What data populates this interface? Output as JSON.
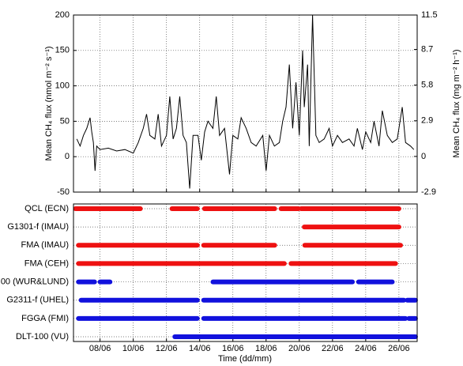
{
  "chart_data": [
    {
      "type": "line",
      "ylabel": "Mean CH₄ flux (nmol m⁻² s⁻¹)",
      "y2label": "Mean CH₄ flux (mg m⁻² h⁻¹)",
      "x": [
        6.6,
        6.8,
        7.0,
        7.2,
        7.4,
        7.5,
        7.6,
        7.7,
        7.8,
        8.0,
        8.5,
        9.0,
        9.5,
        10.0,
        10.3,
        10.6,
        10.8,
        11.0,
        11.3,
        11.5,
        11.7,
        12.0,
        12.2,
        12.4,
        12.6,
        12.8,
        13.0,
        13.2,
        13.4,
        13.6,
        13.9,
        14.1,
        14.3,
        14.5,
        14.8,
        15.0,
        15.2,
        15.5,
        15.8,
        16.0,
        16.3,
        16.5,
        16.8,
        17.1,
        17.4,
        17.8,
        18.0,
        18.2,
        18.5,
        18.8,
        19.0,
        19.2,
        19.4,
        19.6,
        19.8,
        20.0,
        20.2,
        20.3,
        20.5,
        20.6,
        20.8,
        21.0,
        21.2,
        21.5,
        21.8,
        22.0,
        22.3,
        22.6,
        23.0,
        23.3,
        23.5,
        23.8,
        24.0,
        24.3,
        24.5,
        24.8,
        25.0,
        25.3,
        25.6,
        25.9,
        26.2,
        26.4,
        26.7,
        26.9
      ],
      "series": [
        {
          "color": "#000000",
          "values": [
            25,
            15,
            30,
            40,
            55,
            35,
            20,
            -20,
            15,
            10,
            12,
            8,
            10,
            5,
            20,
            40,
            60,
            30,
            25,
            60,
            15,
            30,
            85,
            25,
            40,
            85,
            30,
            20,
            -45,
            30,
            30,
            -5,
            35,
            50,
            40,
            85,
            30,
            40,
            -25,
            30,
            25,
            55,
            40,
            20,
            15,
            30,
            -20,
            30,
            15,
            20,
            50,
            70,
            130,
            40,
            105,
            30,
            150,
            70,
            130,
            15,
            200,
            30,
            20,
            25,
            40,
            15,
            30,
            20,
            25,
            15,
            40,
            10,
            35,
            20,
            50,
            15,
            65,
            30,
            20,
            25,
            70,
            20,
            15,
            10
          ]
        }
      ],
      "xlim": [
        6.4,
        27.1
      ],
      "xticks": [
        8,
        10,
        12,
        14,
        16,
        18,
        20,
        22,
        24,
        26
      ],
      "ylim": [
        -50,
        200
      ],
      "yticks": [
        -50,
        0,
        50,
        100,
        150,
        200
      ],
      "y2lim": [
        -2.9,
        11.5
      ],
      "y2ticks": [
        -2.9,
        0,
        2.9,
        5.8,
        8.7,
        11.5
      ],
      "grid": true
    },
    {
      "type": "timeline",
      "xlabel": "Time (dd/mm)",
      "xlim": [
        6.4,
        27.1
      ],
      "xticks": [
        {
          "value": 8,
          "label": "08/06"
        },
        {
          "value": 10,
          "label": "10/06"
        },
        {
          "value": 12,
          "label": "12/06"
        },
        {
          "value": 14,
          "label": "14/06"
        },
        {
          "value": 16,
          "label": "16/06"
        },
        {
          "value": 18,
          "label": "18/06"
        },
        {
          "value": 20,
          "label": "20/06"
        },
        {
          "value": 22,
          "label": "22/06"
        },
        {
          "value": 24,
          "label": "24/06"
        },
        {
          "value": 26,
          "label": "26/06"
        }
      ],
      "rows": [
        {
          "name": "QCL (ECN)",
          "color": "#ee1111",
          "segments": [
            [
              6.52,
              10.43
            ],
            [
              12.33,
              13.86
            ],
            [
              14.29,
              18.52
            ],
            [
              18.9,
              19.95
            ],
            [
              20.1,
              26.0
            ]
          ]
        },
        {
          "name": "G1301-f (IMAU)",
          "color": "#ee1111",
          "segments": [
            [
              20.3,
              26.0
            ]
          ]
        },
        {
          "name": "FMA (IMAU)",
          "color": "#ee1111",
          "segments": [
            [
              6.7,
              13.86
            ],
            [
              14.24,
              18.52
            ],
            [
              20.33,
              26.1
            ]
          ]
        },
        {
          "name": "FMA (CEH)",
          "color": "#ee1111",
          "segments": [
            [
              6.7,
              19.1
            ],
            [
              19.5,
              25.8
            ]
          ]
        },
        {
          "name": "00 (WUR&LUND)",
          "color": "#1111dd",
          "segments": [
            [
              6.7,
              7.67
            ],
            [
              8.0,
              8.6
            ],
            [
              14.8,
              23.2
            ],
            [
              23.57,
              25.6
            ]
          ]
        },
        {
          "name": "G2311-f (UHEL)",
          "color": "#1111dd",
          "segments": [
            [
              6.86,
              13.86
            ],
            [
              14.24,
              26.3
            ],
            [
              26.5,
              27.0
            ]
          ]
        },
        {
          "name": "FGGA (FMI)",
          "color": "#1111dd",
          "segments": [
            [
              6.7,
              13.86
            ],
            [
              14.24,
              26.4
            ],
            [
              26.6,
              27.0
            ]
          ]
        },
        {
          "name": "DLT-100 (VU)",
          "color": "#1111dd",
          "segments": [
            [
              12.5,
              27.0
            ]
          ]
        }
      ],
      "grid": true
    }
  ]
}
